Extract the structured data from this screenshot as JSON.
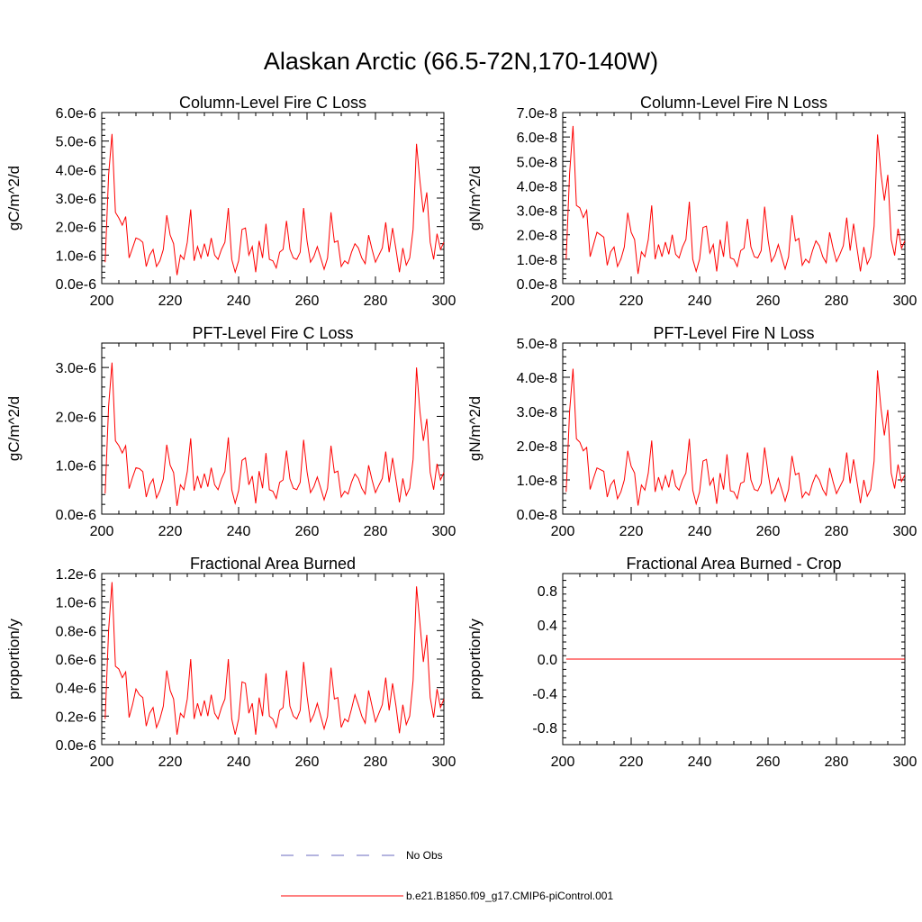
{
  "figure_title": "Alaskan Arctic (66.5-72N,170-140W)",
  "legend": {
    "obs_label": "No Obs",
    "obs_color": "#6a6abf",
    "model_label": "b.e21.B1850.f09_g17.CMIP6-piControl.001",
    "model_color": "#ff0000"
  },
  "chart_data": [
    {
      "type": "line",
      "title": "Column-Level Fire C Loss",
      "xlabel": "",
      "ylabel": "gC/m^2/d",
      "xlim": [
        200,
        300
      ],
      "ylim": [
        0,
        6e-06
      ],
      "xticks": [
        200,
        220,
        240,
        260,
        280,
        300
      ],
      "xtick_labels": [
        "200",
        "220",
        "240",
        "260",
        "280",
        "300"
      ],
      "yticks": [
        0,
        1e-06,
        2e-06,
        3e-06,
        4e-06,
        5e-06,
        6e-06
      ],
      "ytick_labels": [
        "0.0e-6",
        "1.0e-6",
        "2.0e-6",
        "3.0e-6",
        "4.0e-6",
        "5.0e-6",
        "6.0e-6"
      ],
      "series": [
        {
          "name": "b.e21.B1850.f09_g17.CMIP6-piControl.001",
          "color": "#ff0000",
          "x_start": 201,
          "x_step": 1,
          "values": [
            7.5e-07,
            3.8e-06,
            5.25e-06,
            2.5e-06,
            2.3e-06,
            2.05e-06,
            2.35e-06,
            9e-07,
            1.25e-06,
            1.6e-06,
            1.55e-06,
            1.45e-06,
            6e-07,
            1e-06,
            1.2e-06,
            6e-07,
            8e-07,
            1.2e-06,
            2.4e-06,
            1.7e-06,
            1.4e-06,
            3e-07,
            1e-06,
            8.5e-07,
            1.45e-06,
            2.6e-06,
            8e-07,
            1.3e-06,
            9e-07,
            1.4e-06,
            9.5e-07,
            1.6e-06,
            1e-06,
            8.5e-07,
            1.2e-06,
            1.45e-06,
            2.65e-06,
            8.5e-07,
            4e-07,
            8e-07,
            1.9e-06,
            1.95e-06,
            1e-06,
            1.3e-06,
            4e-07,
            1.5e-06,
            9e-07,
            2.1e-06,
            8.5e-07,
            8e-07,
            5.5e-07,
            1.1e-06,
            1.2e-06,
            2.2e-06,
            1.2e-06,
            9e-07,
            8.5e-07,
            1.1e-06,
            2.65e-06,
            1.5e-06,
            7.5e-07,
            9.5e-07,
            1.3e-06,
            9e-07,
            5e-07,
            9e-07,
            2.5e-06,
            1.45e-06,
            1.5e-06,
            6e-07,
            8e-07,
            7e-07,
            1.1e-06,
            1.4e-06,
            1.25e-06,
            9e-07,
            7e-07,
            1.7e-06,
            1.2e-06,
            7.5e-07,
            1e-06,
            1.25e-06,
            2.15e-06,
            1.1e-06,
            1.95e-06,
            1.2e-06,
            4e-07,
            1.25e-06,
            6.5e-07,
            9e-07,
            1.9e-06,
            4.9e-06,
            3.6e-06,
            2.5e-06,
            3.2e-06,
            1.45e-06,
            8.5e-07,
            1.75e-06,
            1.2e-06,
            1.45e-06
          ]
        }
      ]
    },
    {
      "type": "line",
      "title": "Column-Level Fire N Loss",
      "xlabel": "",
      "ylabel": "gN/m^2/d",
      "xlim": [
        200,
        300
      ],
      "ylim": [
        0,
        7e-08
      ],
      "xticks": [
        200,
        220,
        240,
        260,
        280,
        300
      ],
      "xtick_labels": [
        "200",
        "220",
        "240",
        "260",
        "280",
        "300"
      ],
      "yticks": [
        0,
        1e-08,
        2e-08,
        3e-08,
        4e-08,
        5e-08,
        6e-08,
        7e-08
      ],
      "ytick_labels": [
        "0.0e-8",
        "1.0e-8",
        "2.0e-8",
        "3.0e-8",
        "4.0e-8",
        "5.0e-8",
        "6.0e-8",
        "7.0e-8"
      ],
      "series": [
        {
          "name": "b.e21.B1850.f09_g17.CMIP6-piControl.001",
          "color": "#ff0000",
          "x_start": 201,
          "x_step": 1,
          "values": [
            1e-08,
            4.5e-08,
            6.45e-08,
            3.2e-08,
            3.1e-08,
            2.7e-08,
            3e-08,
            1.1e-08,
            1.6e-08,
            2.1e-08,
            2e-08,
            1.9e-08,
            7.5e-09,
            1.3e-08,
            1.5e-08,
            7e-09,
            1e-08,
            1.5e-08,
            2.9e-08,
            2.1e-08,
            1.8e-08,
            4e-09,
            1.3e-08,
            1.1e-08,
            1.8e-08,
            3.2e-08,
            1e-08,
            1.6e-08,
            1.1e-08,
            1.7e-08,
            1.2e-08,
            2e-08,
            1.2e-08,
            1.05e-08,
            1.5e-08,
            1.8e-08,
            3.35e-08,
            1e-08,
            5e-09,
            1e-08,
            2.3e-08,
            2.35e-08,
            1.25e-08,
            1.6e-08,
            5e-09,
            1.8e-08,
            1.1e-08,
            2.55e-08,
            1.05e-08,
            1e-08,
            7e-09,
            1.35e-08,
            1.45e-08,
            2.65e-08,
            1.5e-08,
            1.1e-08,
            1.05e-08,
            1.35e-08,
            3.15e-08,
            1.8e-08,
            9e-09,
            1.15e-08,
            1.6e-08,
            1.1e-08,
            6e-09,
            1.1e-08,
            2.8e-08,
            1.75e-08,
            1.85e-08,
            7.5e-09,
            1e-08,
            8.5e-09,
            1.35e-08,
            1.75e-08,
            1.55e-08,
            1.1e-08,
            8.5e-09,
            2.1e-08,
            1.45e-08,
            9e-09,
            1.2e-08,
            1.55e-08,
            2.7e-08,
            1.35e-08,
            2.45e-08,
            1.45e-08,
            5e-09,
            1.5e-08,
            8e-09,
            1.1e-08,
            2.35e-08,
            6.1e-08,
            4.5e-08,
            3.4e-08,
            4.45e-08,
            1.8e-08,
            1.15e-08,
            2.25e-08,
            1.45e-08,
            1.75e-08
          ]
        }
      ]
    },
    {
      "type": "line",
      "title": "PFT-Level Fire C Loss",
      "xlabel": "",
      "ylabel": "gC/m^2/d",
      "xlim": [
        200,
        300
      ],
      "ylim": [
        0,
        3.5e-06
      ],
      "xticks": [
        200,
        220,
        240,
        260,
        280,
        300
      ],
      "xtick_labels": [
        "200",
        "220",
        "240",
        "260",
        "280",
        "300"
      ],
      "yticks": [
        0,
        1e-06,
        2e-06,
        3e-06
      ],
      "ytick_labels": [
        "0.0e-6",
        "1.0e-6",
        "2.0e-6",
        "3.0e-6"
      ],
      "series": [
        {
          "name": "b.e21.B1850.f09_g17.CMIP6-piControl.001",
          "color": "#ff0000",
          "x_start": 201,
          "x_step": 1,
          "values": [
            4.2e-07,
            2.2e-06,
            3.1e-06,
            1.5e-06,
            1.4e-06,
            1.25e-06,
            1.4e-06,
            5.2e-07,
            7.5e-07,
            9.5e-07,
            9.3e-07,
            8.7e-07,
            3.5e-07,
            6e-07,
            7.2e-07,
            3.3e-07,
            4.8e-07,
            7.2e-07,
            1.42e-06,
            1e-06,
            8.5e-07,
            1.7e-07,
            6e-07,
            5e-07,
            8.7e-07,
            1.55e-06,
            4.8e-07,
            7.8e-07,
            5.3e-07,
            8.3e-07,
            5.6e-07,
            9.5e-07,
            6e-07,
            5e-07,
            7.2e-07,
            8.7e-07,
            1.57e-06,
            5e-07,
            2.2e-07,
            4.8e-07,
            1.1e-06,
            1.15e-06,
            6e-07,
            7.8e-07,
            2.2e-07,
            8.8e-07,
            5.3e-07,
            1.25e-06,
            5e-07,
            4.7e-07,
            3.2e-07,
            6.5e-07,
            7e-07,
            1.3e-06,
            7.2e-07,
            5.3e-07,
            5e-07,
            6.5e-07,
            1.52e-06,
            8.7e-07,
            4.4e-07,
            5.6e-07,
            7.6e-07,
            5.3e-07,
            2.9e-07,
            5.3e-07,
            1.4e-06,
            8.5e-07,
            8.8e-07,
            3.5e-07,
            4.7e-07,
            4.1e-07,
            6.5e-07,
            8.2e-07,
            7.3e-07,
            5.3e-07,
            4.1e-07,
            1e-06,
            7e-07,
            4.4e-07,
            5.9e-07,
            7.3e-07,
            1.28e-06,
            6.5e-07,
            1.15e-06,
            7e-07,
            2.4e-07,
            7.3e-07,
            3.8e-07,
            5.3e-07,
            1.12e-06,
            3e-06,
            2.1e-06,
            1.5e-06,
            1.95e-06,
            8.5e-07,
            5e-07,
            1.03e-06,
            7e-07,
            8.5e-07
          ]
        }
      ]
    },
    {
      "type": "line",
      "title": "PFT-Level Fire N Loss",
      "xlabel": "",
      "ylabel": "gN/m^2/d",
      "xlim": [
        200,
        300
      ],
      "ylim": [
        0,
        5e-08
      ],
      "xticks": [
        200,
        220,
        240,
        260,
        280,
        300
      ],
      "xtick_labels": [
        "200",
        "220",
        "240",
        "260",
        "280",
        "300"
      ],
      "yticks": [
        0,
        1e-08,
        2e-08,
        3e-08,
        4e-08,
        5e-08
      ],
      "ytick_labels": [
        "0.0e-8",
        "1.0e-8",
        "2.0e-8",
        "3.0e-8",
        "4.0e-8",
        "5.0e-8"
      ],
      "series": [
        {
          "name": "b.e21.B1850.f09_g17.CMIP6-piControl.001",
          "color": "#ff0000",
          "x_start": 201,
          "x_step": 1,
          "values": [
            6.5e-09,
            3e-08,
            4.25e-08,
            2.2e-08,
            2.1e-08,
            1.85e-08,
            1.95e-08,
            7.2e-09,
            1.05e-08,
            1.35e-08,
            1.3e-08,
            1.25e-08,
            5e-09,
            8.5e-09,
            1e-08,
            4.5e-09,
            6.5e-09,
            1e-08,
            1.85e-08,
            1.4e-08,
            1.2e-08,
            2.5e-09,
            8.5e-09,
            7e-09,
            1.2e-08,
            2.15e-08,
            6.5e-09,
            1.08e-08,
            7.2e-09,
            1.12e-08,
            7.8e-09,
            1.3e-08,
            8.2e-09,
            7e-09,
            1e-08,
            1.2e-08,
            2.2e-08,
            7e-09,
            3e-09,
            6.5e-09,
            1.55e-08,
            1.6e-08,
            8.5e-09,
            1.05e-08,
            3e-09,
            1.2e-08,
            7.2e-09,
            1.75e-08,
            6.8e-09,
            6.5e-09,
            4.5e-09,
            9e-09,
            9.5e-09,
            1.8e-08,
            1e-08,
            7.2e-09,
            6.8e-09,
            9e-09,
            1.95e-08,
            1.2e-08,
            6e-09,
            7.5e-09,
            1.05e-08,
            7.2e-09,
            3.8e-09,
            7.2e-09,
            1.7e-08,
            1.15e-08,
            1.2e-08,
            4.8e-09,
            6.5e-09,
            5.5e-09,
            9e-09,
            1.15e-08,
            1e-08,
            7.2e-09,
            5.5e-09,
            1.35e-08,
            9.5e-09,
            6e-09,
            8e-09,
            1e-08,
            1.8e-08,
            9e-09,
            1.6e-08,
            9.5e-09,
            3.2e-09,
            1e-08,
            5.2e-09,
            7.2e-09,
            1.55e-08,
            4.2e-08,
            3.1e-08,
            2.3e-08,
            3.05e-08,
            1.2e-08,
            7.5e-09,
            1.45e-08,
            9.5e-09,
            1.15e-08
          ]
        }
      ]
    },
    {
      "type": "line",
      "title": "Fractional Area Burned",
      "xlabel": "",
      "ylabel": "proportion/y",
      "xlim": [
        200,
        300
      ],
      "ylim": [
        0,
        1.2e-06
      ],
      "xticks": [
        200,
        220,
        240,
        260,
        280,
        300
      ],
      "xtick_labels": [
        "200",
        "220",
        "240",
        "260",
        "280",
        "300"
      ],
      "yticks": [
        0,
        2e-07,
        4e-07,
        6e-07,
        8e-07,
        1e-06,
        1.2e-06
      ],
      "ytick_labels": [
        "0.0e-6",
        "0.2e-6",
        "0.4e-6",
        "0.6e-6",
        "0.8e-6",
        "1.0e-6",
        "1.2e-6"
      ],
      "series": [
        {
          "name": "b.e21.B1850.f09_g17.CMIP6-piControl.001",
          "color": "#ff0000",
          "x_start": 201,
          "x_step": 1,
          "values": [
            1.8e-07,
            8e-07,
            1.14e-06,
            5.5e-07,
            5.3e-07,
            4.7e-07,
            5.1e-07,
            1.9e-07,
            2.8e-07,
            3.9e-07,
            3.5e-07,
            3.3e-07,
            1.3e-07,
            2.2e-07,
            2.6e-07,
            1.2e-07,
            1.8e-07,
            2.7e-07,
            5.2e-07,
            3.8e-07,
            3.2e-07,
            7e-08,
            2.2e-07,
            1.9e-07,
            3.2e-07,
            6e-07,
            1.8e-07,
            2.9e-07,
            2e-07,
            3.1e-07,
            2e-07,
            3.5e-07,
            2.2e-07,
            1.8e-07,
            2.6e-07,
            3.2e-07,
            6e-07,
            1.8e-07,
            7e-08,
            1.8e-07,
            4.4e-07,
            4.3e-07,
            2.2e-07,
            2.9e-07,
            7e-08,
            3.3e-07,
            2e-07,
            5e-07,
            2e-07,
            1.8e-07,
            1.2e-07,
            2.4e-07,
            2.6e-07,
            5.2e-07,
            2.7e-07,
            2e-07,
            1.8e-07,
            2.4e-07,
            5.8e-07,
            3.4e-07,
            1.6e-07,
            2.1e-07,
            2.9e-07,
            2e-07,
            1.1e-07,
            2e-07,
            5.4e-07,
            3.2e-07,
            3.3e-07,
            1.2e-07,
            1.8e-07,
            1.6e-07,
            2.5e-07,
            3.5e-07,
            2.8e-07,
            2e-07,
            1.5e-07,
            3.8e-07,
            2.7e-07,
            1.6e-07,
            2.2e-07,
            2.8e-07,
            4.7e-07,
            2.4e-07,
            4.3e-07,
            2.7e-07,
            8e-08,
            2.8e-07,
            1.4e-07,
            2e-07,
            4.5e-07,
            1.11e-06,
            8.5e-07,
            5.8e-07,
            7.7e-07,
            3.3e-07,
            1.9e-07,
            3.9e-07,
            2.6e-07,
            3.2e-07
          ]
        }
      ]
    },
    {
      "type": "line",
      "title": "Fractional Area Burned - Crop",
      "xlabel": "",
      "ylabel": "proportion/y",
      "xlim": [
        200,
        300
      ],
      "ylim": [
        -1.0,
        1.0
      ],
      "xticks": [
        200,
        220,
        240,
        260,
        280,
        300
      ],
      "xtick_labels": [
        "200",
        "220",
        "240",
        "260",
        "280",
        "300"
      ],
      "yticks": [
        -0.8,
        -0.4,
        0.0,
        0.4,
        0.8
      ],
      "ytick_labels": [
        "-0.8",
        "-0.4",
        "0.0",
        "0.4",
        "0.8"
      ],
      "series": [
        {
          "name": "b.e21.B1850.f09_g17.CMIP6-piControl.001",
          "color": "#ff0000",
          "x": [
            201,
            300
          ],
          "values": [
            0.0,
            0.0
          ]
        }
      ]
    }
  ]
}
